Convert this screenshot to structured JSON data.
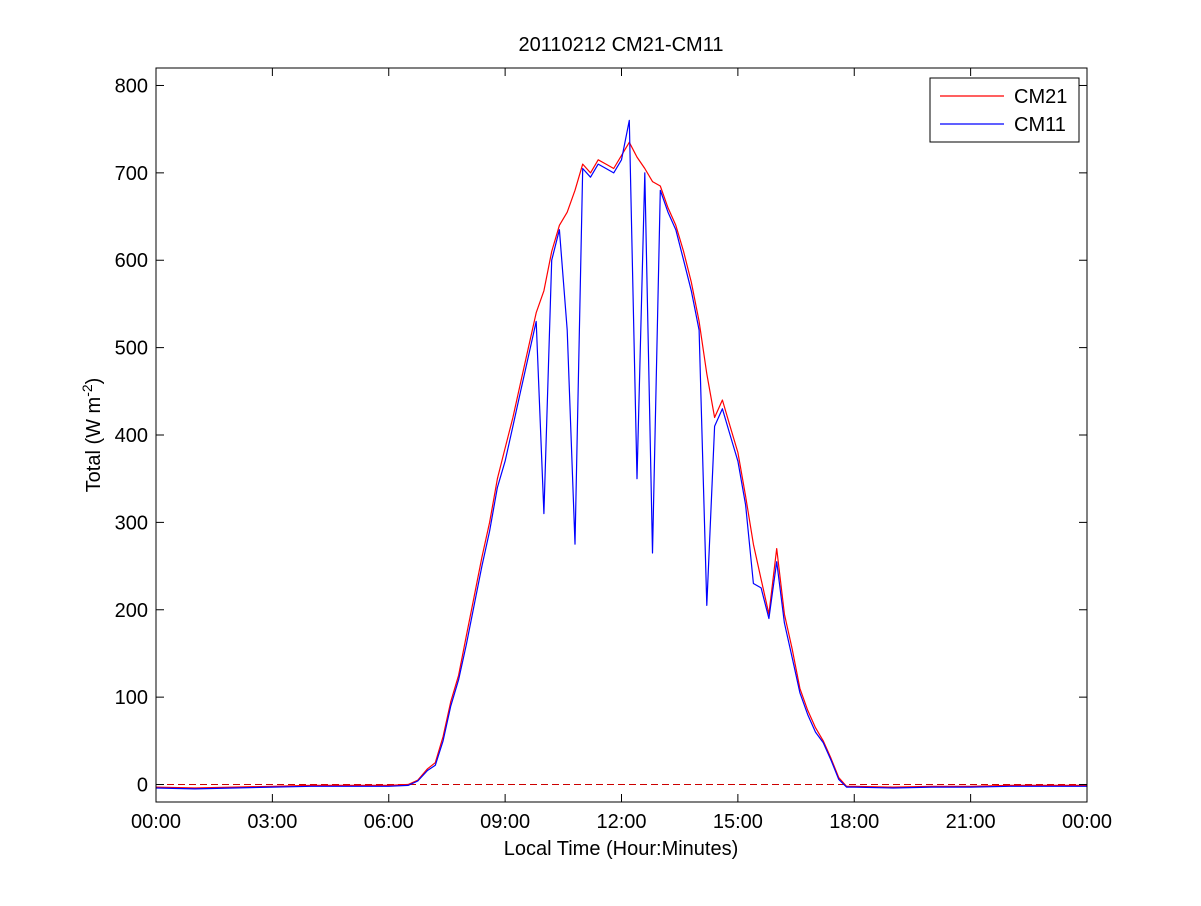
{
  "chart_data": {
    "type": "line",
    "title": "20110212 CM21-CM11",
    "xlabel": "Local Time (Hour:Minutes)",
    "ylabel": {
      "text": "Total (W m",
      "superscript": "-2",
      "suffix": ")"
    },
    "xlim": [
      0,
      24
    ],
    "ylim": [
      -20,
      820
    ],
    "x_ticks": [
      0,
      3,
      6,
      9,
      12,
      15,
      18,
      21,
      24
    ],
    "x_tick_labels": [
      "00:00",
      "03:00",
      "06:00",
      "09:00",
      "12:00",
      "15:00",
      "18:00",
      "21:00",
      "00:00"
    ],
    "y_ticks": [
      0,
      100,
      200,
      300,
      400,
      500,
      600,
      700,
      800
    ],
    "y_tick_labels": [
      "0",
      "100",
      "200",
      "300",
      "400",
      "500",
      "600",
      "700",
      "800"
    ],
    "grid": false,
    "legend": "top-right",
    "reference_line": {
      "y": 0,
      "style": "dashed",
      "color": "#cc0000"
    },
    "series": [
      {
        "name": "CM21",
        "color": "#ff0000",
        "x": [
          0,
          1,
          2,
          3,
          4,
          5,
          6,
          6.5,
          6.75,
          7,
          7.2,
          7.4,
          7.6,
          7.8,
          8,
          8.2,
          8.4,
          8.6,
          8.8,
          9,
          9.2,
          9.4,
          9.6,
          9.8,
          10,
          10.2,
          10.4,
          10.6,
          10.8,
          11,
          11.2,
          11.4,
          11.6,
          11.8,
          12,
          12.2,
          12.4,
          12.6,
          12.8,
          13,
          13.2,
          13.4,
          13.6,
          13.8,
          14,
          14.2,
          14.4,
          14.6,
          14.8,
          15,
          15.2,
          15.4,
          15.6,
          15.8,
          16,
          16.2,
          16.4,
          16.6,
          16.8,
          17,
          17.2,
          17.4,
          17.6,
          17.8,
          18,
          19,
          20,
          21,
          22,
          23,
          24
        ],
        "values": [
          -3,
          -4,
          -3,
          -2,
          -1,
          -1,
          -1,
          0,
          5,
          18,
          25,
          55,
          95,
          125,
          170,
          215,
          260,
          300,
          350,
          385,
          420,
          460,
          500,
          540,
          565,
          610,
          640,
          655,
          680,
          710,
          700,
          715,
          710,
          705,
          720,
          735,
          718,
          705,
          690,
          685,
          660,
          640,
          610,
          575,
          530,
          470,
          420,
          440,
          410,
          380,
          330,
          275,
          235,
          195,
          270,
          195,
          155,
          110,
          85,
          65,
          50,
          30,
          8,
          -2,
          -2,
          -3,
          -2,
          -2,
          -1,
          -1,
          -1
        ]
      },
      {
        "name": "CM11",
        "color": "#0000ff",
        "x": [
          0,
          1,
          2,
          3,
          4,
          5,
          6,
          6.5,
          6.75,
          7,
          7.2,
          7.4,
          7.6,
          7.8,
          8,
          8.2,
          8.4,
          8.6,
          8.8,
          9,
          9.2,
          9.4,
          9.6,
          9.8,
          10,
          10.2,
          10.4,
          10.6,
          10.8,
          11,
          11.2,
          11.4,
          11.6,
          11.8,
          12,
          12.2,
          12.4,
          12.6,
          12.8,
          13,
          13.2,
          13.4,
          13.6,
          13.8,
          14,
          14.2,
          14.4,
          14.6,
          14.8,
          15,
          15.2,
          15.4,
          15.6,
          15.8,
          16,
          16.2,
          16.4,
          16.6,
          16.8,
          17,
          17.2,
          17.4,
          17.6,
          17.8,
          18,
          19,
          20,
          21,
          22,
          23,
          24
        ],
        "values": [
          -4,
          -5,
          -4,
          -3,
          -2,
          -2,
          -2,
          -1,
          4,
          16,
          22,
          50,
          90,
          120,
          160,
          205,
          250,
          290,
          340,
          370,
          410,
          450,
          490,
          530,
          310,
          600,
          635,
          520,
          275,
          705,
          695,
          710,
          705,
          700,
          715,
          760,
          350,
          700,
          265,
          680,
          655,
          635,
          600,
          565,
          520,
          205,
          410,
          430,
          400,
          370,
          320,
          230,
          225,
          190,
          255,
          185,
          145,
          105,
          80,
          60,
          48,
          28,
          6,
          -3,
          -3,
          -4,
          -3,
          -3,
          -2,
          -2,
          -2
        ]
      }
    ]
  }
}
